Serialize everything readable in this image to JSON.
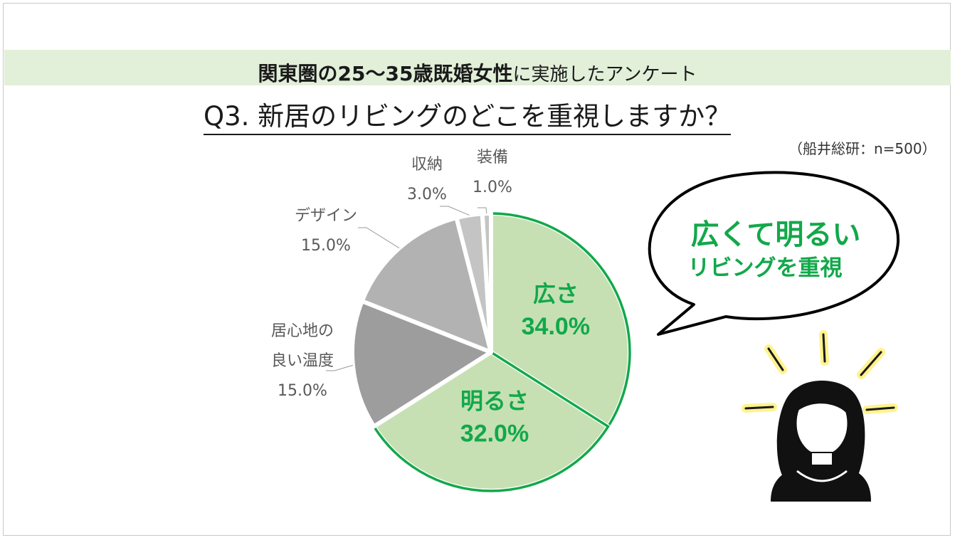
{
  "header": {
    "banner_bold": "関東圏の25～35歳既婚女性",
    "banner_rest": "に実施したアンケート",
    "question": "Q3. 新居のリビングのどこを重視しますか？",
    "source": "（船井総研：n=500）"
  },
  "callout": {
    "line1": "広くて明るい",
    "line2": "リビングを重視"
  },
  "colors": {
    "highlight": "#c6e0b4",
    "highlight_border": "#12a84a",
    "highlight_text": "#12a84a",
    "gray_dark": "#9d9d9d",
    "gray_mid": "#b2b2b2",
    "gray_light": "#c4c4c4",
    "banner": "#e2efd9"
  },
  "chart_data": {
    "type": "pie",
    "title": "Q3. 新居のリビングのどこを重視しますか？",
    "slices": [
      {
        "label": "広さ",
        "value": 34.0,
        "display": "34.0%",
        "highlight": true
      },
      {
        "label": "明るさ",
        "value": 32.0,
        "display": "32.0%",
        "highlight": true
      },
      {
        "label": "居心地の良い温度",
        "label_lines": [
          "居心地の",
          "良い温度"
        ],
        "value": 15.0,
        "display": "15.0%",
        "highlight": false
      },
      {
        "label": "デザイン",
        "label_lines": [
          "デザイン"
        ],
        "value": 15.0,
        "display": "15.0%",
        "highlight": false
      },
      {
        "label": "収納",
        "label_lines": [
          "収納"
        ],
        "value": 3.0,
        "display": "3.0%",
        "highlight": false
      },
      {
        "label": "装備",
        "label_lines": [
          "装備"
        ],
        "value": 1.0,
        "display": "1.0%",
        "highlight": false
      }
    ]
  }
}
